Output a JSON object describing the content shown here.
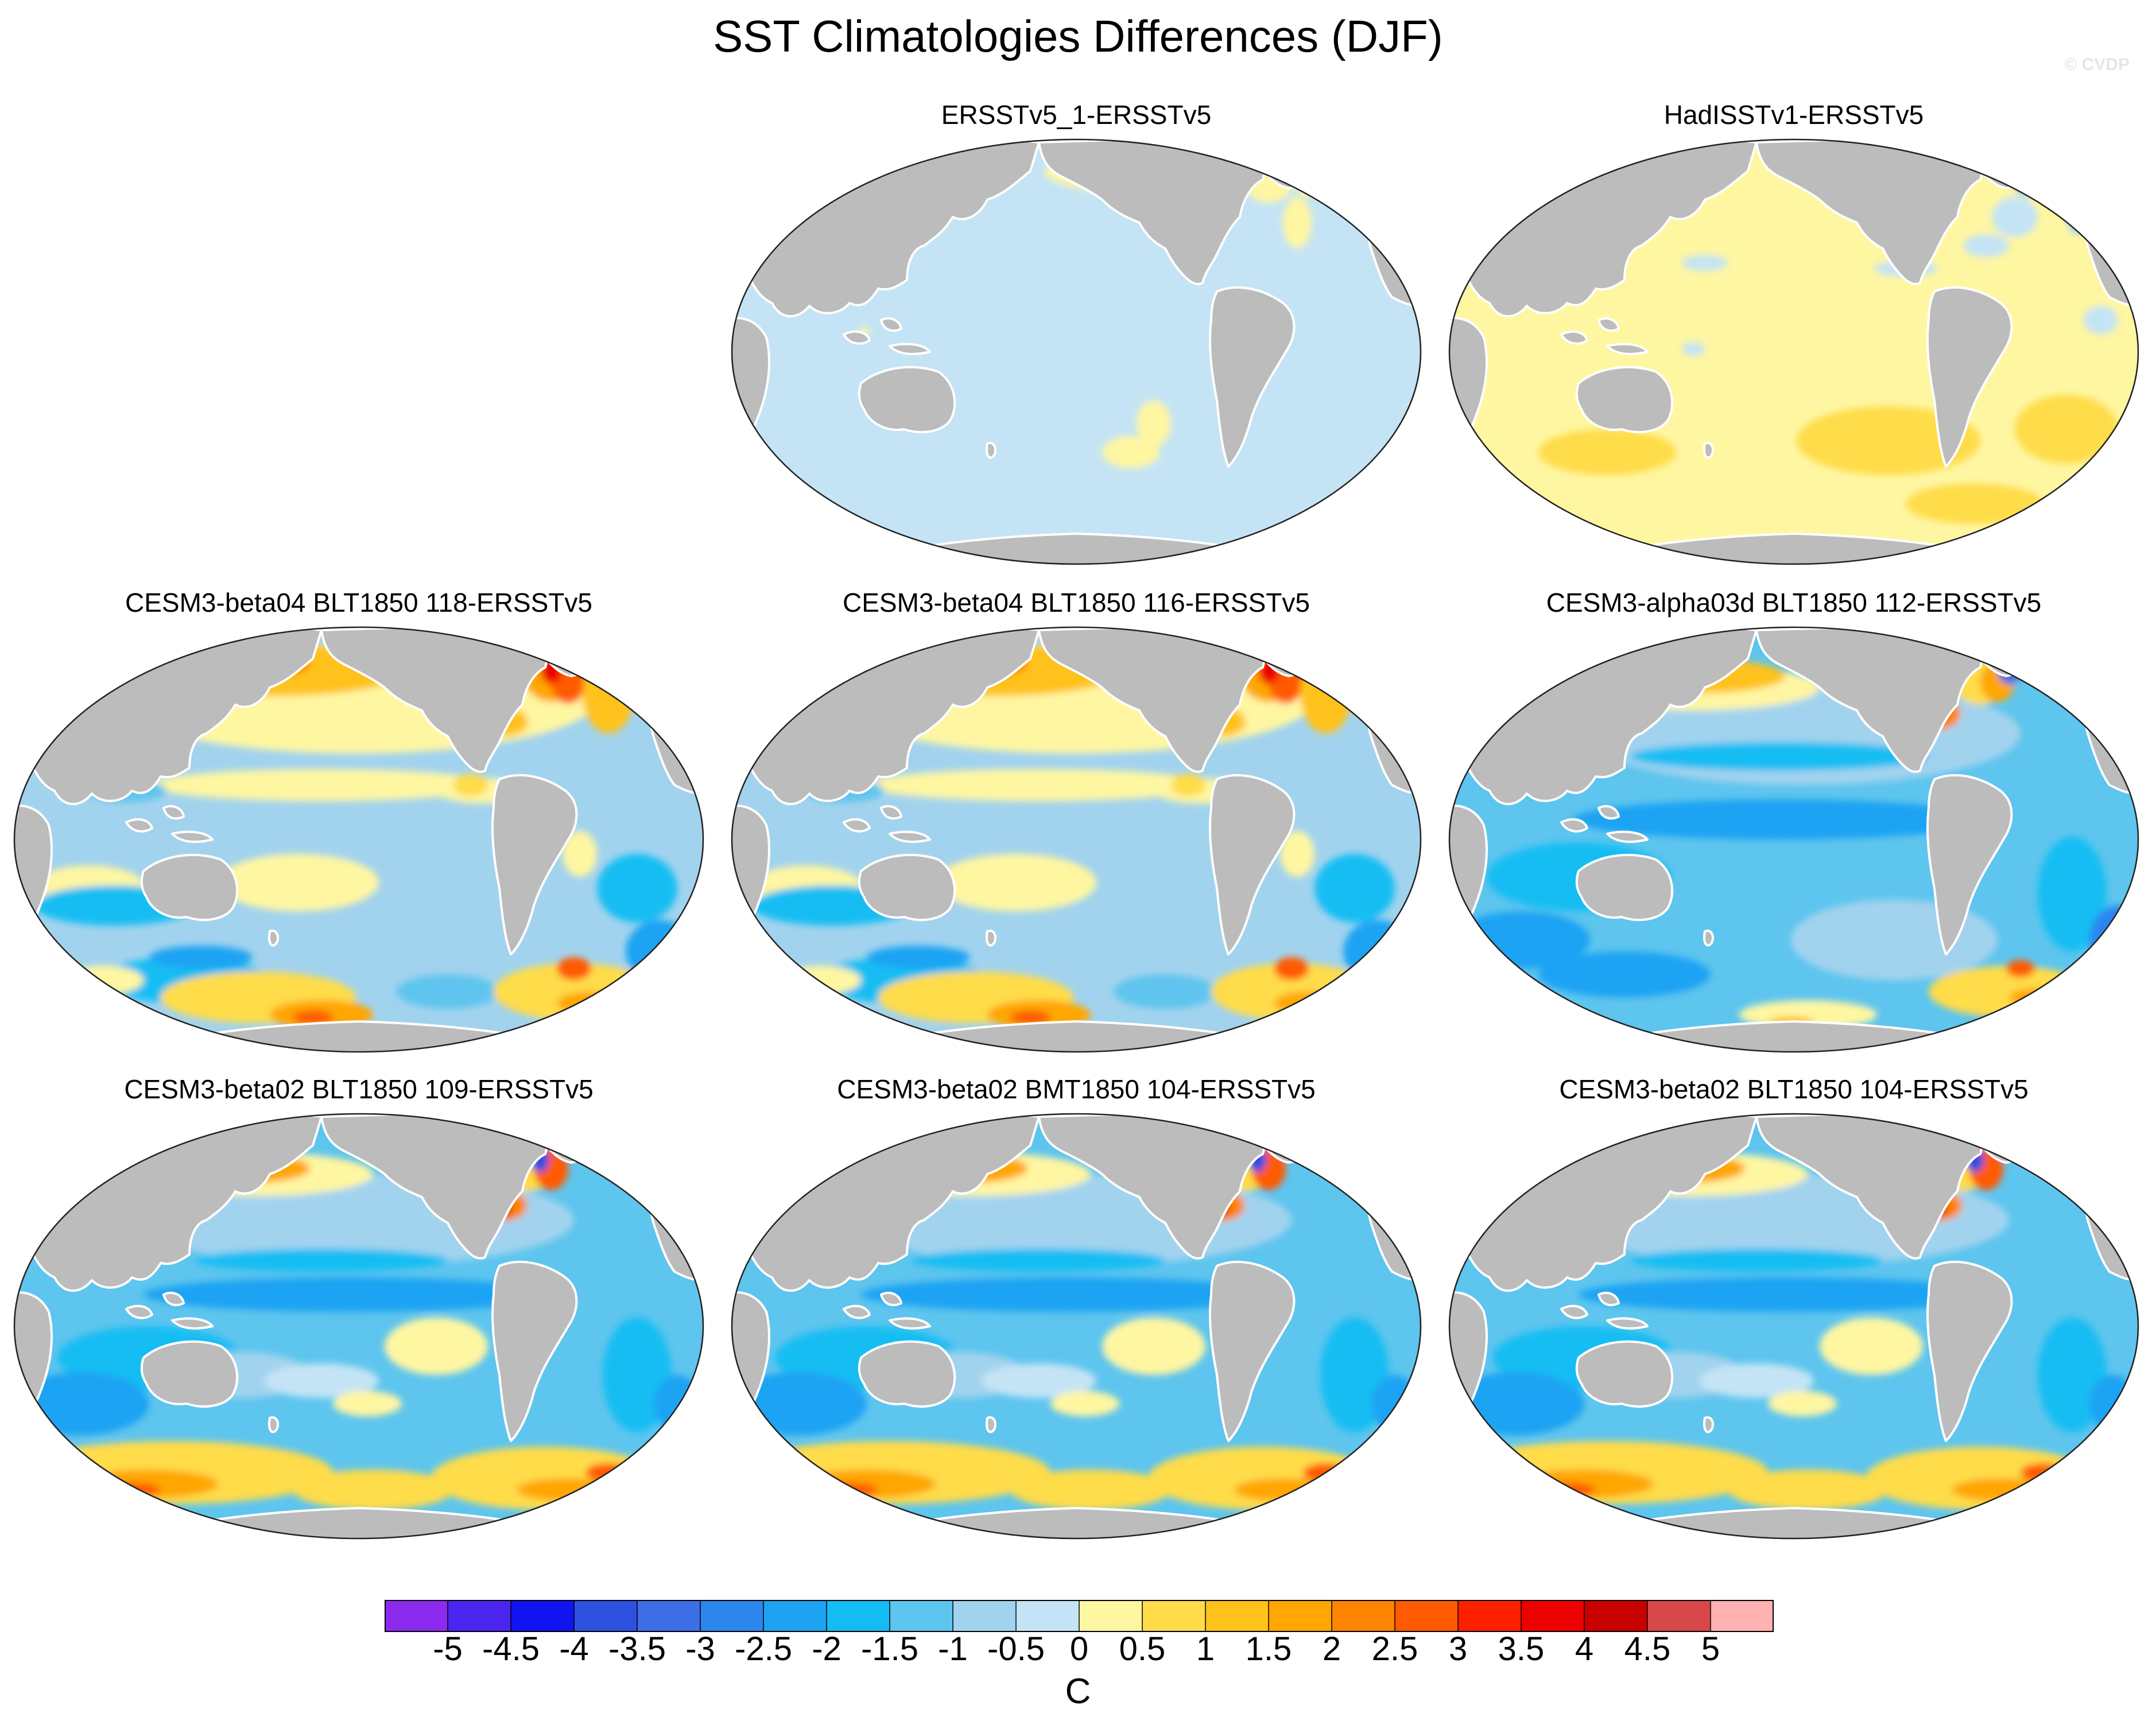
{
  "title": "SST Climatologies Differences (DJF)",
  "credit": "© CVDP",
  "panels": [
    {
      "id": "p1",
      "title": "ERSSTv5_1-ERSSTv5",
      "pattern": "flat-cool"
    },
    {
      "id": "p2",
      "title": "HadISSTv1-ERSSTv5",
      "pattern": "flat-warm"
    },
    {
      "id": "p3",
      "title": "CESM3-beta04 BLT1850 118-ERSSTv5",
      "pattern": "model-a"
    },
    {
      "id": "p4",
      "title": "CESM3-beta04 BLT1850 116-ERSSTv5",
      "pattern": "model-a"
    },
    {
      "id": "p5",
      "title": "CESM3-alpha03d BLT1850 112-ERSSTv5",
      "pattern": "model-b"
    },
    {
      "id": "p6",
      "title": "CESM3-beta02 BLT1850 109-ERSSTv5",
      "pattern": "model-c"
    },
    {
      "id": "p7",
      "title": "CESM3-beta02 BMT1850 104-ERSSTv5",
      "pattern": "model-c"
    },
    {
      "id": "p8",
      "title": "CESM3-beta02 BLT1850 104-ERSSTv5",
      "pattern": "model-c"
    }
  ],
  "colorbar": {
    "units": "C",
    "labels": [
      "-5",
      "-4.5",
      "-4",
      "-3.5",
      "-3",
      "-2.5",
      "-2",
      "-1.5",
      "-1",
      "-0.5",
      "0",
      "0.5",
      "1",
      "1.5",
      "2",
      "2.5",
      "3",
      "3.5",
      "4",
      "4.5",
      "5"
    ],
    "colors": [
      "#8c2bef",
      "#4b24f0",
      "#1014f0",
      "#2c50e0",
      "#3d6ee6",
      "#2b86ee",
      "#1ea3f3",
      "#13bdf3",
      "#5ec5ee",
      "#a2d3ee",
      "#c4e4f5",
      "#fff6a2",
      "#ffdc48",
      "#ffc21a",
      "#ffa600",
      "#ff8400",
      "#ff5a00",
      "#ff2000",
      "#ec0000",
      "#c80000",
      "#d84848",
      "#ffb2b2"
    ]
  },
  "map_colors": {
    "land": "#bcbcbc",
    "coast": "#ffffff",
    "ice": "#ffffff"
  }
}
